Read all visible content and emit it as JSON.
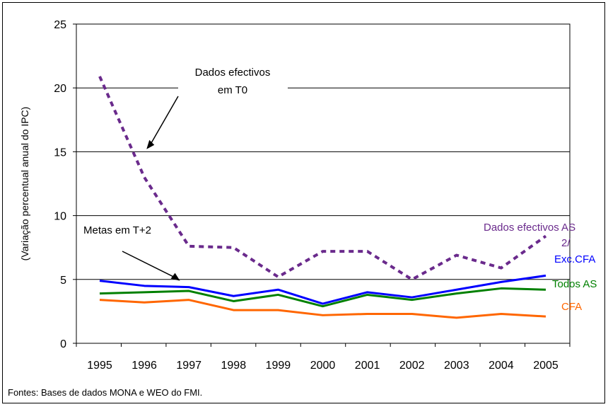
{
  "chart_data": {
    "type": "line",
    "title": "",
    "xlabel": "",
    "ylabel": "(Variação percentual anual do IPC)",
    "x": [
      1995,
      1996,
      1997,
      1998,
      1999,
      2000,
      2001,
      2002,
      2003,
      2004,
      2005
    ],
    "x_tick_labels": [
      "1995",
      "1996",
      "1997",
      "1998",
      "1999",
      "2000",
      "2001",
      "2002",
      "2003",
      "2004",
      "2005"
    ],
    "ylim": [
      0,
      25
    ],
    "y_ticks": [
      0,
      5,
      10,
      15,
      20,
      25
    ],
    "y_tick_labels": [
      "0",
      "5",
      "10",
      "15",
      "20",
      "25"
    ],
    "grid": true,
    "series": [
      {
        "name": "Dados efectivos AS 2/",
        "label_lines": [
          "Dados efectivos AS",
          "2/"
        ],
        "color": "#6a2a8c",
        "dashed": true,
        "values": [
          20.9,
          13.0,
          7.6,
          7.5,
          5.2,
          7.2,
          7.2,
          5.0,
          6.9,
          5.9,
          8.4
        ]
      },
      {
        "name": "Exc.CFA",
        "label_lines": [
          "Exc.CFA"
        ],
        "color": "#0000ff",
        "dashed": false,
        "values": [
          4.9,
          4.5,
          4.4,
          3.7,
          4.2,
          3.1,
          4.0,
          3.6,
          4.2,
          4.8,
          5.3
        ]
      },
      {
        "name": "Todos AS",
        "label_lines": [
          "Todos AS"
        ],
        "color": "#008000",
        "dashed": false,
        "values": [
          3.9,
          4.0,
          4.1,
          3.3,
          3.8,
          2.9,
          3.8,
          3.4,
          3.9,
          4.3,
          4.2
        ]
      },
      {
        "name": "CFA",
        "label_lines": [
          "CFA"
        ],
        "color": "#ff6600",
        "dashed": false,
        "values": [
          3.4,
          3.2,
          3.4,
          2.6,
          2.6,
          2.2,
          2.3,
          2.3,
          2.0,
          2.3,
          2.1
        ]
      }
    ],
    "annotations": [
      {
        "text_lines": [
          "Dados efectivos",
          "em T0"
        ],
        "arrow_to_x": 1996.05,
        "arrow_to_y": 15.2
      },
      {
        "text_lines": [
          "Metas em T+2"
        ],
        "arrow_to_x": 1996.8,
        "arrow_to_y": 4.9
      }
    ],
    "source": "Fontes: Bases de dados MONA e WEO do FMI."
  }
}
